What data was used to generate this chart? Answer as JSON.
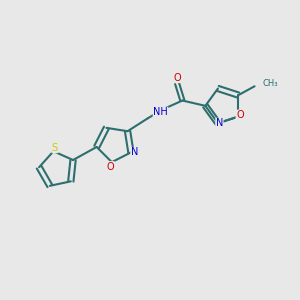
{
  "bg_color": "#e8e8e8",
  "bond_color": "#2d6e6e",
  "bond_width": 1.5,
  "N_color": "#0000cc",
  "O_color": "#cc0000",
  "S_color": "#cccc00",
  "C_color": "#2d6e6e",
  "figsize": [
    3.0,
    3.0
  ],
  "dpi": 100,
  "xlim": [
    0,
    10
  ],
  "ylim": [
    0,
    10
  ]
}
